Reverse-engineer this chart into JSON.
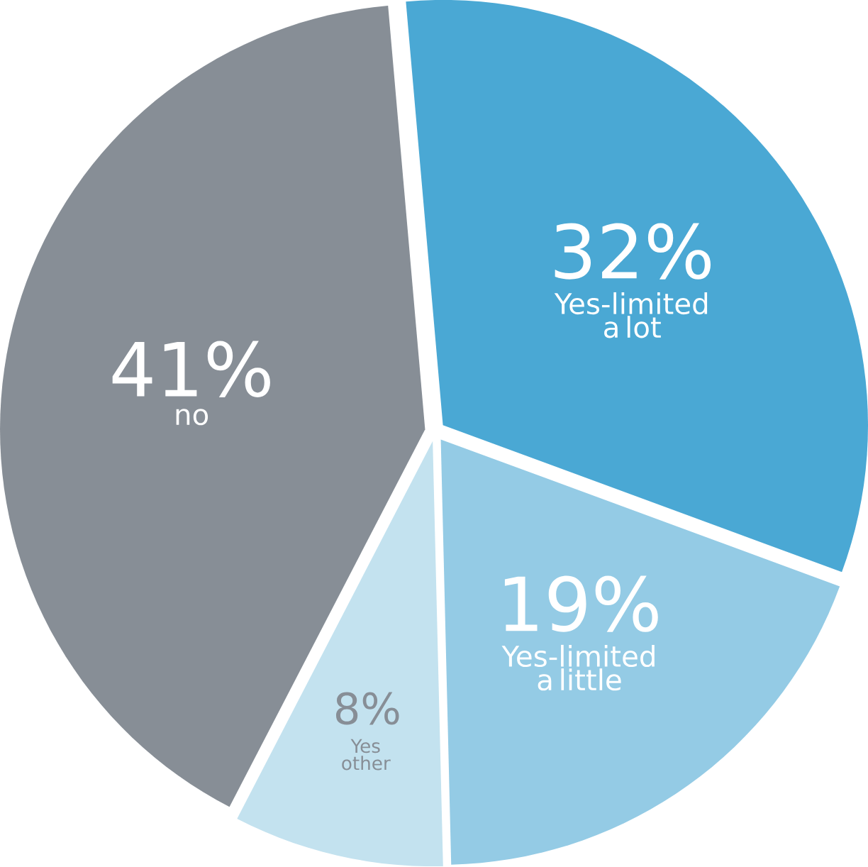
{
  "chart_data": {
    "type": "pie",
    "categories": [
      "Yes-limited a lot",
      "Yes-limited a little",
      "Yes other",
      "no"
    ],
    "values": [
      32,
      19,
      8,
      41
    ],
    "value_labels": [
      "32%",
      "19%",
      "8%",
      "41%"
    ],
    "colors": [
      "#4aa8d4",
      "#94cbe5",
      "#c3e2ef",
      "#878e96"
    ]
  }
}
